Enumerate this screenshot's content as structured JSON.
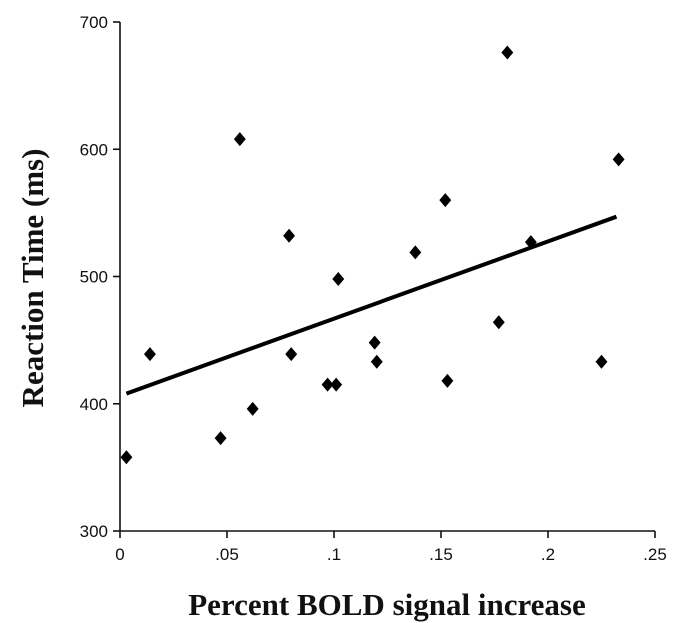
{
  "chart_data": {
    "type": "scatter",
    "title": "",
    "xlabel": "Percent BOLD signal increase",
    "ylabel": "Reaction Time (ms)",
    "xlim": [
      0,
      0.25
    ],
    "ylim": [
      300,
      700
    ],
    "x_ticks": [
      0,
      0.05,
      0.1,
      0.15,
      0.2,
      0.25
    ],
    "x_tick_labels": [
      "0",
      ".05",
      ".1",
      ".15",
      ".2",
      ".25"
    ],
    "y_ticks": [
      300,
      400,
      500,
      600,
      700
    ],
    "y_tick_labels": [
      "300",
      "400",
      "500",
      "600",
      "700"
    ],
    "grid": false,
    "legend": "none",
    "marker": "diamond",
    "color": "#000000",
    "points": [
      {
        "x": 0.003,
        "y": 358
      },
      {
        "x": 0.014,
        "y": 439
      },
      {
        "x": 0.047,
        "y": 373
      },
      {
        "x": 0.056,
        "y": 608
      },
      {
        "x": 0.062,
        "y": 396
      },
      {
        "x": 0.079,
        "y": 532
      },
      {
        "x": 0.08,
        "y": 439
      },
      {
        "x": 0.097,
        "y": 415
      },
      {
        "x": 0.101,
        "y": 415
      },
      {
        "x": 0.102,
        "y": 498
      },
      {
        "x": 0.119,
        "y": 448
      },
      {
        "x": 0.12,
        "y": 433
      },
      {
        "x": 0.138,
        "y": 519
      },
      {
        "x": 0.152,
        "y": 560
      },
      {
        "x": 0.153,
        "y": 418
      },
      {
        "x": 0.177,
        "y": 464
      },
      {
        "x": 0.181,
        "y": 676
      },
      {
        "x": 0.192,
        "y": 527
      },
      {
        "x": 0.225,
        "y": 433
      },
      {
        "x": 0.233,
        "y": 592
      }
    ],
    "trend_line": {
      "x": [
        0.003,
        0.232
      ],
      "y": [
        408,
        547
      ]
    }
  }
}
